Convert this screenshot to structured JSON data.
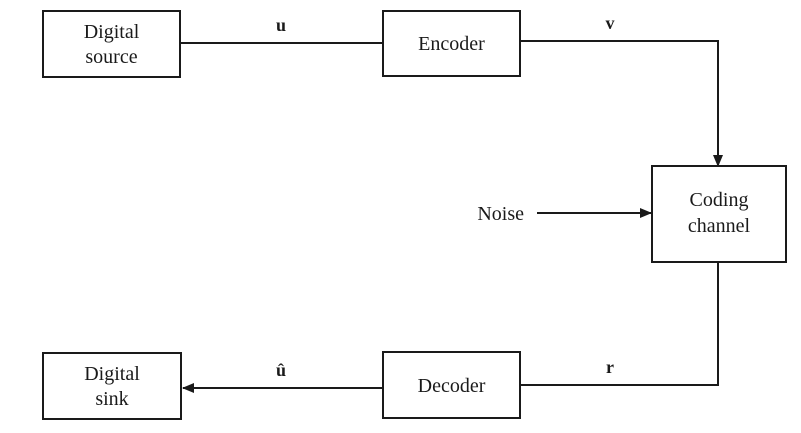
{
  "blocks": {
    "digital_source": {
      "line1": "Digital",
      "line2": "source"
    },
    "encoder": {
      "label": "Encoder"
    },
    "coding_channel": {
      "line1": "Coding",
      "line2": "channel"
    },
    "decoder": {
      "label": "Decoder"
    },
    "digital_sink": {
      "line1": "Digital",
      "line2": "sink"
    }
  },
  "signals": {
    "u": "u",
    "v": "v",
    "r": "r",
    "u_hat": "û"
  },
  "noise": {
    "label": "Noise"
  },
  "colors": {
    "line": "#1a1a1a",
    "background": "#ffffff"
  }
}
